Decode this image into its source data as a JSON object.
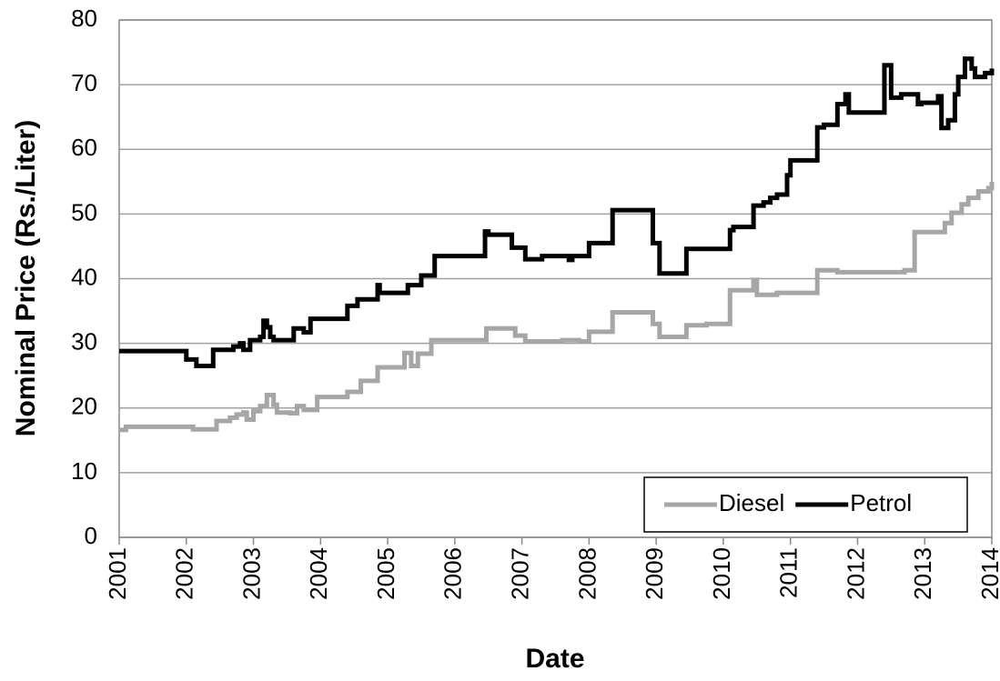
{
  "chart_data": {
    "type": "line",
    "step": true,
    "x_label": "Date",
    "y_label": "Nominal Price (Rs./Liter)",
    "xlim": [
      2001,
      2014
    ],
    "xticks": [
      2001,
      2002,
      2003,
      2004,
      2005,
      2006,
      2007,
      2008,
      2009,
      2010,
      2011,
      2012,
      2013,
      2014
    ],
    "ylim": [
      0,
      80
    ],
    "yticks": [
      0,
      10,
      20,
      30,
      40,
      50,
      60,
      70,
      80
    ],
    "grid": true,
    "legend": "lower right",
    "series": [
      {
        "name": "Diesel",
        "color": "#a6a6a6",
        "x": [
          2001.0,
          2001.1,
          2002.1,
          2002.45,
          2002.65,
          2002.75,
          2002.85,
          2002.9,
          2003.0,
          2003.1,
          2003.2,
          2003.3,
          2003.35,
          2003.55,
          2003.65,
          2003.75,
          2003.95,
          2004.4,
          2004.6,
          2004.85,
          2005.25,
          2005.35,
          2005.45,
          2005.65,
          2006.47,
          2006.9,
          2007.05,
          2007.6,
          2007.85,
          2008.0,
          2008.35,
          2008.95,
          2009.05,
          2009.45,
          2009.75,
          2010.1,
          2010.45,
          2010.5,
          2010.8,
          2011.4,
          2011.7,
          2012.7,
          2012.85,
          2013.3,
          2013.4,
          2013.55,
          2013.65,
          2013.8,
          2013.95,
          2014.0
        ],
        "values": [
          16.6,
          17.1,
          16.7,
          18,
          18.5,
          19,
          19.3,
          18.2,
          19.5,
          20.3,
          22,
          20.5,
          19.3,
          19.2,
          20.3,
          19.7,
          21.7,
          22.5,
          24.2,
          26.3,
          28.5,
          26.5,
          28.4,
          30.5,
          32.3,
          31.2,
          30.3,
          30.5,
          30.3,
          31.8,
          34.8,
          33,
          31,
          32.8,
          33,
          38.2,
          39.8,
          37.5,
          37.8,
          41.3,
          41,
          41.3,
          47.2,
          48.6,
          50.2,
          51.5,
          52.5,
          53.5,
          54,
          55
        ]
      },
      {
        "name": "Petrol",
        "color": "#000000",
        "x": [
          2001.0,
          2002.0,
          2002.15,
          2002.4,
          2002.7,
          2002.8,
          2002.85,
          2002.95,
          2003.1,
          2003.15,
          2003.2,
          2003.25,
          2003.3,
          2003.4,
          2003.6,
          2003.75,
          2003.85,
          2004.4,
          2004.55,
          2004.85,
          2004.88,
          2005.3,
          2005.5,
          2005.7,
          2006.45,
          2006.5,
          2006.85,
          2007.05,
          2007.3,
          2007.7,
          2007.75,
          2008.0,
          2008.35,
          2008.95,
          2009.05,
          2009.45,
          2010.1,
          2010.15,
          2010.45,
          2010.6,
          2010.7,
          2010.8,
          2010.95,
          2011.0,
          2011.4,
          2011.5,
          2011.7,
          2011.82,
          2011.87,
          2012.4,
          2012.5,
          2012.65,
          2012.9,
          2012.95,
          2013.2,
          2013.25,
          2013.35,
          2013.45,
          2013.5,
          2013.6,
          2013.7,
          2013.75,
          2013.9,
          2014.0
        ],
        "values": [
          28.8,
          27.5,
          26.5,
          29,
          29.5,
          30,
          29,
          30.5,
          31,
          33.5,
          32.5,
          31,
          30.5,
          30.5,
          32.3,
          31.7,
          33.8,
          35.8,
          36.8,
          39,
          37.8,
          39,
          40.5,
          43.5,
          47.3,
          46.8,
          44.8,
          43,
          43.5,
          42.9,
          43.5,
          45.5,
          50.6,
          45.5,
          40.8,
          44.6,
          47.5,
          48,
          51.3,
          51.8,
          52.5,
          53,
          56,
          58.3,
          63.4,
          63.8,
          67,
          68.5,
          65.7,
          73,
          68,
          68.5,
          67,
          67.2,
          68.2,
          63.3,
          64.5,
          68.5,
          71.2,
          74,
          72.5,
          71.2,
          71.8,
          72.5
        ]
      }
    ]
  }
}
